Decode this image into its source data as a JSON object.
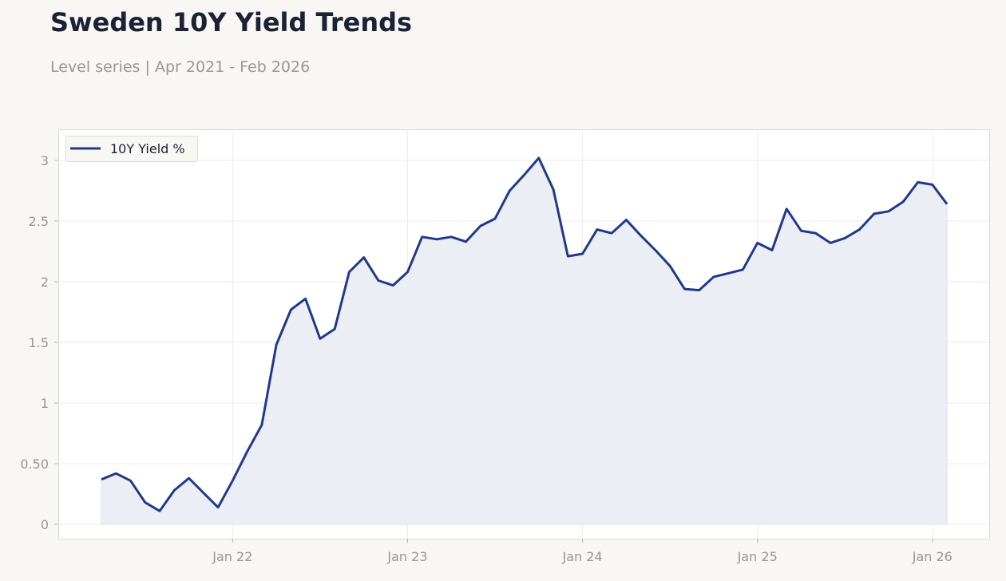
{
  "header": {
    "title": "Sweden 10Y Yield Trends",
    "subtitle": "Level series | Apr 2021 - Feb 2026"
  },
  "legend": {
    "label": "10Y Yield %"
  },
  "colors": {
    "line": "#1f3a8a",
    "fill": "#eceef5",
    "background": "#f8f7f4",
    "plot_background": "#ffffff",
    "grid": "#ecebe8",
    "tick_text": "#9a9691",
    "title": "#1a2233"
  },
  "axes": {
    "y_ticks": [
      "0",
      "0.50",
      "1",
      "1.5",
      "2",
      "2.5",
      "3"
    ],
    "x_ticks": [
      "Jan 22",
      "Jan 23",
      "Jan 24",
      "Jan 25",
      "Jan 26"
    ]
  },
  "chart_data": {
    "type": "area",
    "title": "Sweden 10Y Yield Trends",
    "subtitle": "Level series | Apr 2021 - Feb 2026",
    "xlabel": "",
    "ylabel": "",
    "ylim": [
      -0.12,
      3.26
    ],
    "grid": true,
    "legend_position": "upper left",
    "x": [
      "2021-04",
      "2021-05",
      "2021-06",
      "2021-07",
      "2021-08",
      "2021-09",
      "2021-10",
      "2021-11",
      "2021-12",
      "2022-01",
      "2022-02",
      "2022-03",
      "2022-04",
      "2022-05",
      "2022-06",
      "2022-07",
      "2022-08",
      "2022-09",
      "2022-10",
      "2022-11",
      "2022-12",
      "2023-01",
      "2023-02",
      "2023-03",
      "2023-04",
      "2023-05",
      "2023-06",
      "2023-07",
      "2023-08",
      "2023-09",
      "2023-10",
      "2023-11",
      "2023-12",
      "2024-01",
      "2024-02",
      "2024-03",
      "2024-04",
      "2024-05",
      "2024-06",
      "2024-07",
      "2024-08",
      "2024-09",
      "2024-10",
      "2024-11",
      "2024-12",
      "2025-01",
      "2025-02",
      "2025-03",
      "2025-04",
      "2025-05",
      "2025-06",
      "2025-07",
      "2025-08",
      "2025-09",
      "2025-10",
      "2025-11",
      "2025-12",
      "2026-01",
      "2026-02"
    ],
    "x_tick_labels": [
      "Jan 22",
      "Jan 23",
      "Jan 24",
      "Jan 25",
      "Jan 26"
    ],
    "y_tick_labels": [
      "0",
      "0.50",
      "1",
      "1.5",
      "2",
      "2.5",
      "3"
    ],
    "series": [
      {
        "name": "10Y Yield %",
        "values": [
          0.37,
          0.42,
          0.36,
          0.18,
          0.11,
          0.28,
          0.38,
          0.26,
          0.14,
          0.36,
          0.6,
          0.82,
          1.48,
          1.77,
          1.86,
          1.53,
          1.61,
          2.08,
          2.2,
          2.01,
          1.97,
          2.08,
          2.37,
          2.35,
          2.37,
          2.33,
          2.46,
          2.52,
          2.75,
          2.88,
          3.02,
          2.76,
          2.21,
          2.23,
          2.43,
          2.4,
          2.51,
          2.38,
          2.26,
          2.13,
          1.94,
          1.93,
          2.04,
          2.07,
          2.1,
          2.32,
          2.26,
          2.6,
          2.42,
          2.4,
          2.32,
          2.36,
          2.43,
          2.56,
          2.58,
          2.66,
          2.82,
          2.8,
          2.64
        ]
      }
    ]
  }
}
